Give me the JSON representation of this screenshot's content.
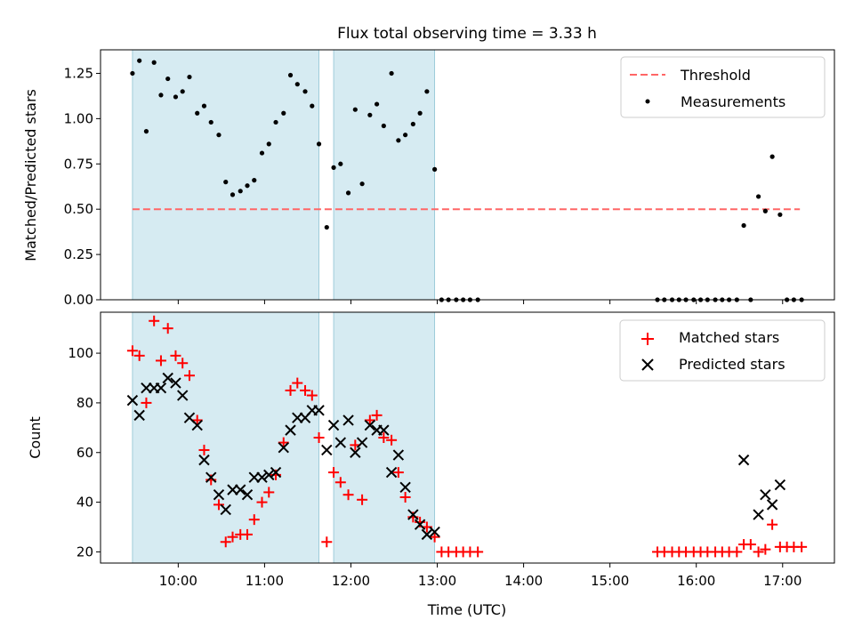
{
  "chart_data": [
    {
      "type": "scatter",
      "title": "Flux total observing time = 3.33 h",
      "xlabel": "",
      "ylabel": "Matched/Predicted stars",
      "ylim": [
        0,
        1.38
      ],
      "yticks": [
        0,
        0.25,
        0.5,
        0.75,
        1.0,
        1.25
      ],
      "ytick_labels": [
        "0.00",
        "0.25",
        "0.50",
        "0.75",
        "1.00",
        "1.25"
      ],
      "threshold": {
        "value": 0.5,
        "x_range": [
          9.47,
          17.2
        ],
        "color": "#ff6666"
      },
      "legend_position": "upper right",
      "legend": [
        {
          "label": "Threshold",
          "kind": "dashed-line",
          "color": "#ff6666"
        },
        {
          "label": "Measurements",
          "kind": "dot",
          "color": "#000000"
        }
      ],
      "series": [
        {
          "name": "Measurements",
          "x": [
            9.47,
            9.55,
            9.63,
            9.72,
            9.8,
            9.88,
            9.97,
            10.05,
            10.13,
            10.22,
            10.3,
            10.38,
            10.47,
            10.55,
            10.63,
            10.72,
            10.8,
            10.88,
            10.97,
            11.05,
            11.13,
            11.22,
            11.3,
            11.38,
            11.47,
            11.55,
            11.63,
            11.72,
            11.8,
            11.88,
            11.97,
            12.05,
            12.13,
            12.22,
            12.3,
            12.38,
            12.47,
            12.55,
            12.63,
            12.72,
            12.8,
            12.88,
            12.97,
            13.05,
            13.13,
            13.22,
            13.3,
            13.38,
            13.47,
            15.55,
            15.63,
            15.72,
            15.8,
            15.88,
            15.97,
            16.05,
            16.13,
            16.22,
            16.3,
            16.38,
            16.47,
            16.55,
            16.63,
            16.72,
            16.8,
            16.88,
            16.97,
            17.05,
            17.13,
            17.22
          ],
          "y": [
            1.25,
            1.32,
            0.93,
            1.31,
            1.13,
            1.22,
            1.12,
            1.15,
            1.23,
            1.03,
            1.07,
            0.98,
            0.91,
            0.65,
            0.58,
            0.6,
            0.63,
            0.66,
            0.81,
            0.86,
            0.98,
            1.03,
            1.24,
            1.19,
            1.15,
            1.07,
            0.86,
            0.4,
            0.73,
            0.75,
            0.59,
            1.05,
            0.64,
            1.02,
            1.08,
            0.96,
            1.25,
            0.88,
            0.91,
            0.97,
            1.03,
            1.15,
            0.72,
            0,
            0,
            0,
            0,
            0,
            0,
            0,
            0,
            0,
            0,
            0,
            0,
            0,
            0,
            0,
            0,
            0,
            0,
            0.41,
            0,
            0.57,
            0.49,
            0.79,
            0.47,
            0,
            0,
            0
          ]
        }
      ],
      "shaded_regions": [
        [
          9.47,
          11.63
        ],
        [
          11.8,
          12.97
        ]
      ]
    },
    {
      "type": "scatter",
      "title": "",
      "xlabel": "Time (UTC)",
      "ylabel": "Count",
      "xlim": [
        9.1,
        17.6
      ],
      "xticks": [
        10,
        11,
        12,
        13,
        14,
        15,
        16,
        17
      ],
      "xtick_labels": [
        "10:00",
        "11:00",
        "12:00",
        "13:00",
        "14:00",
        "15:00",
        "16:00",
        "17:00"
      ],
      "ylim": [
        15.5,
        116.5
      ],
      "yticks": [
        20,
        40,
        60,
        80,
        100
      ],
      "ytick_labels": [
        "20",
        "40",
        "60",
        "80",
        "100"
      ],
      "legend_position": "upper right",
      "legend": [
        {
          "label": "Matched stars",
          "kind": "plus",
          "color": "#ff0000"
        },
        {
          "label": "Predicted stars",
          "kind": "x",
          "color": "#000000"
        }
      ],
      "series": [
        {
          "name": "Matched stars",
          "marker": "plus",
          "color": "#ff0000",
          "x": [
            9.47,
            9.55,
            9.63,
            9.72,
            9.8,
            9.88,
            9.97,
            10.05,
            10.13,
            10.22,
            10.3,
            10.38,
            10.47,
            10.55,
            10.63,
            10.72,
            10.8,
            10.88,
            10.97,
            11.05,
            11.13,
            11.22,
            11.3,
            11.38,
            11.47,
            11.55,
            11.63,
            11.72,
            11.8,
            11.88,
            11.97,
            12.05,
            12.13,
            12.22,
            12.3,
            12.38,
            12.47,
            12.55,
            12.63,
            12.72,
            12.8,
            12.88,
            12.97,
            13.05,
            13.13,
            13.22,
            13.3,
            13.38,
            13.47,
            15.55,
            15.63,
            15.72,
            15.8,
            15.88,
            15.97,
            16.05,
            16.13,
            16.22,
            16.3,
            16.38,
            16.47,
            16.55,
            16.63,
            16.72,
            16.8,
            16.88,
            16.97,
            17.05,
            17.13,
            17.22
          ],
          "y": [
            101,
            99,
            80,
            113,
            97,
            110,
            99,
            96,
            91,
            73,
            61,
            49,
            39,
            24,
            26,
            27,
            27,
            33,
            40,
            44,
            51,
            64,
            85,
            88,
            85,
            83,
            66,
            24,
            52,
            48,
            43,
            63,
            41,
            73,
            75,
            66,
            65,
            52,
            42,
            34,
            32,
            30,
            26,
            20,
            20,
            20,
            20,
            20,
            20,
            20,
            20,
            20,
            20,
            20,
            20,
            20,
            20,
            20,
            20,
            20,
            20,
            23,
            23,
            20,
            21,
            31,
            22,
            22,
            22,
            22
          ]
        },
        {
          "name": "Predicted stars",
          "marker": "x",
          "color": "#000000",
          "x": [
            9.47,
            9.55,
            9.63,
            9.72,
            9.8,
            9.88,
            9.97,
            10.05,
            10.13,
            10.22,
            10.3,
            10.38,
            10.47,
            10.55,
            10.63,
            10.72,
            10.8,
            10.88,
            10.97,
            11.05,
            11.13,
            11.22,
            11.3,
            11.38,
            11.47,
            11.55,
            11.63,
            11.72,
            11.8,
            11.88,
            11.97,
            12.05,
            12.13,
            12.22,
            12.3,
            12.38,
            12.47,
            12.55,
            12.63,
            12.72,
            12.8,
            12.88,
            12.97,
            16.55,
            16.72,
            16.8,
            16.88,
            16.97
          ],
          "y": [
            81,
            75,
            86,
            86,
            86,
            90,
            88,
            83,
            74,
            71,
            57,
            50,
            43,
            37,
            45,
            45,
            43,
            50,
            50,
            51,
            52,
            62,
            69,
            74,
            74,
            77,
            77,
            61,
            71,
            64,
            73,
            60,
            64,
            71,
            69,
            69,
            52,
            59,
            46,
            35,
            31,
            27,
            28,
            57,
            35,
            43,
            39,
            47
          ]
        }
      ],
      "shaded_regions": [
        [
          9.47,
          11.63
        ],
        [
          11.8,
          12.97
        ]
      ]
    }
  ]
}
